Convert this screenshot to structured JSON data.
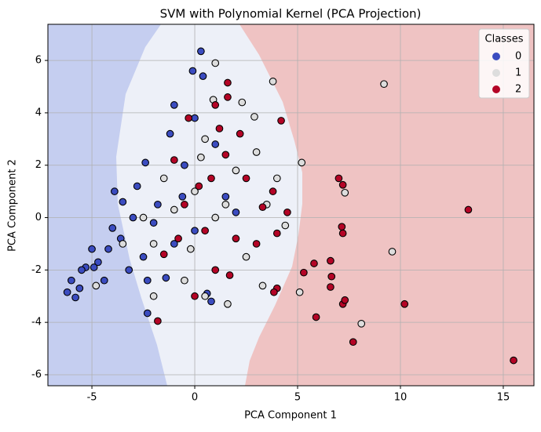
{
  "chart_data": {
    "type": "scatter",
    "title": "SVM with Polynomial Kernel (PCA Projection)",
    "x_label": "PCA Component 1",
    "y_label": "PCA Component 2",
    "xlim": [
      -7.14,
      16.49
    ],
    "ylim": [
      -6.42,
      7.38
    ],
    "xticks": [
      -5,
      0,
      5,
      10,
      15
    ],
    "yticks": [
      -6,
      -4,
      -2,
      0,
      2,
      4,
      6
    ],
    "grid": true,
    "legend_title": "Classes",
    "legend_position": "upper-right",
    "series": [
      {
        "name": "0",
        "color": "#3b4cc0",
        "x": [
          -6.2,
          -5.8,
          -6,
          -5.3,
          -5,
          -4.7,
          -5.5,
          -4.4,
          -4,
          -3.9,
          -3.5,
          -3,
          -2.5,
          -2.3,
          -1.4,
          -2.3,
          0.3,
          -0.1,
          0.4,
          -1,
          -0.5,
          -1.2,
          0,
          1,
          -2.4,
          -1.8,
          0.8,
          0.6,
          -1,
          0,
          1.5,
          -4.2,
          -3.2,
          -5.6,
          -4.9,
          -2.8,
          2,
          -0.6,
          -3.6,
          -2
        ],
        "values": [
          -2.85,
          -3.05,
          -2.4,
          -1.9,
          -1.2,
          -1.7,
          -2,
          -2.4,
          -0.4,
          1,
          0.6,
          0,
          -1.5,
          -2.4,
          -2.3,
          -3.65,
          6.35,
          5.6,
          5.4,
          4.3,
          2,
          3.2,
          3.8,
          2.8,
          2.1,
          0.5,
          -3.2,
          -2.9,
          -1,
          -0.5,
          0.8,
          -1.2,
          -2,
          -2.7,
          -1.9,
          1.2,
          0.2,
          0.8,
          -0.8,
          -0.2
        ]
      },
      {
        "name": "1",
        "color": "#dddddd",
        "x": [
          9.2,
          9.6,
          8.1,
          7.3,
          5.2,
          5.1,
          1,
          3.8,
          0.9,
          2.9,
          2.3,
          0.5,
          -2,
          3,
          4,
          1.5,
          -1,
          -2.5,
          0,
          -3.5,
          -4.8,
          2.5,
          3.3,
          -0.5,
          1.6,
          0.5,
          -1.5,
          2,
          -0.2,
          1,
          3.5,
          4.4,
          -2,
          0.3
        ],
        "values": [
          5.1,
          -1.3,
          -4.05,
          0.95,
          2.1,
          -2.85,
          5.9,
          5.2,
          4.5,
          3.85,
          4.4,
          -3,
          -3,
          2.5,
          1.5,
          0.5,
          0.3,
          0,
          1,
          -1,
          -2.6,
          -1.5,
          -2.6,
          -2.4,
          -3.3,
          3,
          1.5,
          1.8,
          -1.2,
          0,
          0.5,
          -0.3,
          -1,
          2.3
        ]
      },
      {
        "name": "2",
        "color": "#b40426",
        "x": [
          15.5,
          13.3,
          10.2,
          7.7,
          7.2,
          7.3,
          7,
          7.2,
          7.15,
          7.2,
          6.65,
          6.6,
          5.8,
          6.6,
          5.9,
          5.3,
          4,
          3.85,
          1.6,
          1.6,
          4.2,
          3.3,
          1.5,
          0.8,
          -0.5,
          1,
          0,
          -1.8,
          1.2,
          2.2,
          -1,
          2,
          -1.5,
          3,
          4.5,
          2.5,
          0.5,
          -0.3,
          1,
          3.8,
          4,
          0.2,
          1.7,
          -0.8
        ],
        "values": [
          -5.45,
          0.3,
          -3.3,
          -4.75,
          -3.3,
          -3.15,
          1.5,
          1.25,
          -0.35,
          -0.6,
          -2.25,
          -1.65,
          -1.75,
          -2.65,
          -3.8,
          -2.1,
          -2.7,
          -2.85,
          5.15,
          4.6,
          3.7,
          0.4,
          2.4,
          1.5,
          0.5,
          -2,
          -3,
          -3.95,
          3.4,
          3.2,
          2.2,
          -0.8,
          -1.4,
          -1,
          0.2,
          1.5,
          -0.5,
          3.8,
          4.3,
          1,
          -0.6,
          1.2,
          -2.2,
          -0.8
        ]
      }
    ]
  }
}
